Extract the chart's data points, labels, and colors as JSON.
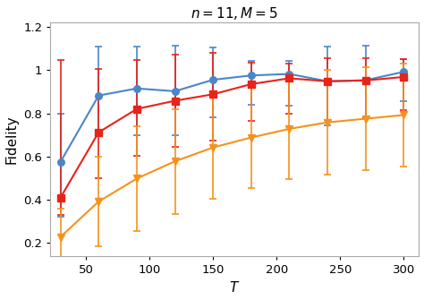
{
  "title": "$n = 11, M = 5$",
  "xlabel": "$T$",
  "ylabel": "Fidelity",
  "xlim": [
    22,
    312
  ],
  "ylim": [
    0.14,
    1.22
  ],
  "yticks": [
    0.2,
    0.4,
    0.6,
    0.8,
    1.0,
    1.2
  ],
  "xticks": [
    50,
    100,
    150,
    200,
    250,
    300
  ],
  "series": [
    {
      "label": "blue",
      "color": "#4a86c8",
      "marker": "o",
      "markersize": 5.5,
      "x": [
        30,
        60,
        90,
        120,
        150,
        180,
        210,
        240,
        270,
        300
      ],
      "y": [
        0.575,
        0.882,
        0.915,
        0.902,
        0.955,
        0.975,
        0.982,
        0.948,
        0.953,
        0.992
      ],
      "yerr_low": [
        0.255,
        0.185,
        0.215,
        0.205,
        0.175,
        0.135,
        0.145,
        0.205,
        0.175,
        0.135
      ],
      "yerr_high": [
        0.225,
        0.228,
        0.195,
        0.21,
        0.15,
        0.068,
        0.062,
        0.162,
        0.158,
        0.06
      ]
    },
    {
      "label": "red",
      "color": "#e8231a",
      "marker": "s",
      "markersize": 5.5,
      "x": [
        30,
        60,
        90,
        120,
        150,
        180,
        210,
        240,
        270,
        300
      ],
      "y": [
        0.41,
        0.712,
        0.82,
        0.858,
        0.888,
        0.935,
        0.962,
        0.948,
        0.952,
        0.968
      ],
      "yerr_low": [
        0.082,
        0.212,
        0.218,
        0.215,
        0.215,
        0.172,
        0.162,
        0.178,
        0.172,
        0.152
      ],
      "yerr_high": [
        0.638,
        0.292,
        0.228,
        0.212,
        0.192,
        0.098,
        0.068,
        0.108,
        0.102,
        0.082
      ]
    },
    {
      "label": "orange",
      "color": "#f5921e",
      "marker": "v",
      "markersize": 5.5,
      "x": [
        30,
        60,
        90,
        120,
        150,
        180,
        210,
        240,
        270,
        300
      ],
      "y": [
        0.228,
        0.392,
        0.498,
        0.578,
        0.642,
        0.688,
        0.728,
        0.758,
        0.775,
        0.792
      ],
      "yerr_low": [
        0.132,
        0.208,
        0.242,
        0.242,
        0.238,
        0.232,
        0.232,
        0.242,
        0.238,
        0.238
      ],
      "yerr_high": [
        0.132,
        0.208,
        0.242,
        0.242,
        0.238,
        0.232,
        0.232,
        0.242,
        0.238,
        0.238
      ]
    }
  ],
  "bg_color": "#ffffff",
  "plot_bg_color": "#ffffff",
  "title_fontsize": 11,
  "axis_label_fontsize": 11,
  "tick_fontsize": 9.5
}
